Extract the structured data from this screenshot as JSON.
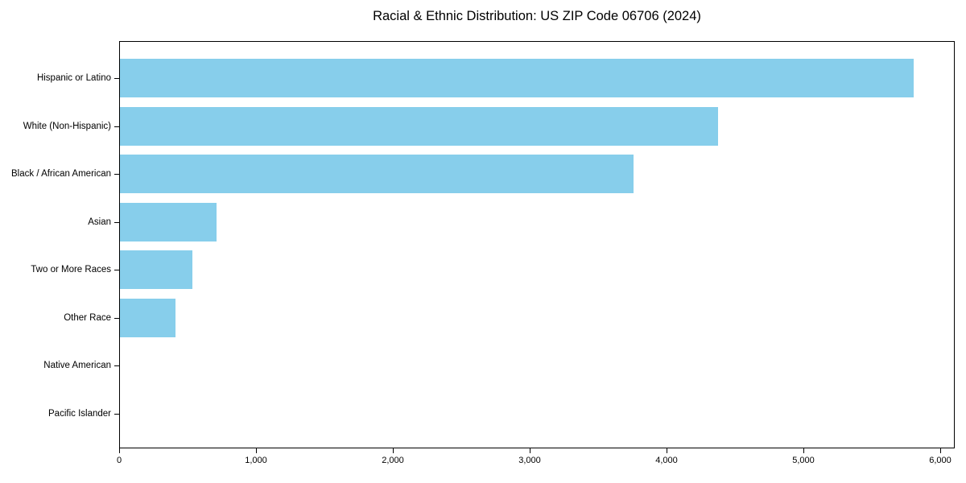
{
  "page": {
    "title": "Racial & Ethnic Distribution: US ZIP Code 06706 (2024)"
  },
  "chart_data": {
    "type": "bar",
    "orientation": "horizontal",
    "title": "Racial & Ethnic Distribution: US ZIP Code 06706 (2024)",
    "categories": [
      "Hispanic or Latino",
      "White (Non-Hispanic)",
      "Black / African American",
      "Asian",
      "Two or More Races",
      "Other Race",
      "Native American",
      "Pacific Islander"
    ],
    "values": [
      5810,
      4380,
      3760,
      705,
      530,
      405,
      0,
      0
    ],
    "xlabel": "",
    "ylabel": "",
    "xlim": [
      0,
      6106
    ],
    "x_ticks": [
      0,
      1000,
      2000,
      3000,
      4000,
      5000,
      6000
    ],
    "x_tick_labels": [
      "0",
      "1,000",
      "2,000",
      "3,000",
      "4,000",
      "5,000",
      "6,000"
    ],
    "bar_color": "#87CEEB",
    "frame_color": "#000000",
    "background_color": "#ffffff",
    "grid": false,
    "legend": "none"
  }
}
